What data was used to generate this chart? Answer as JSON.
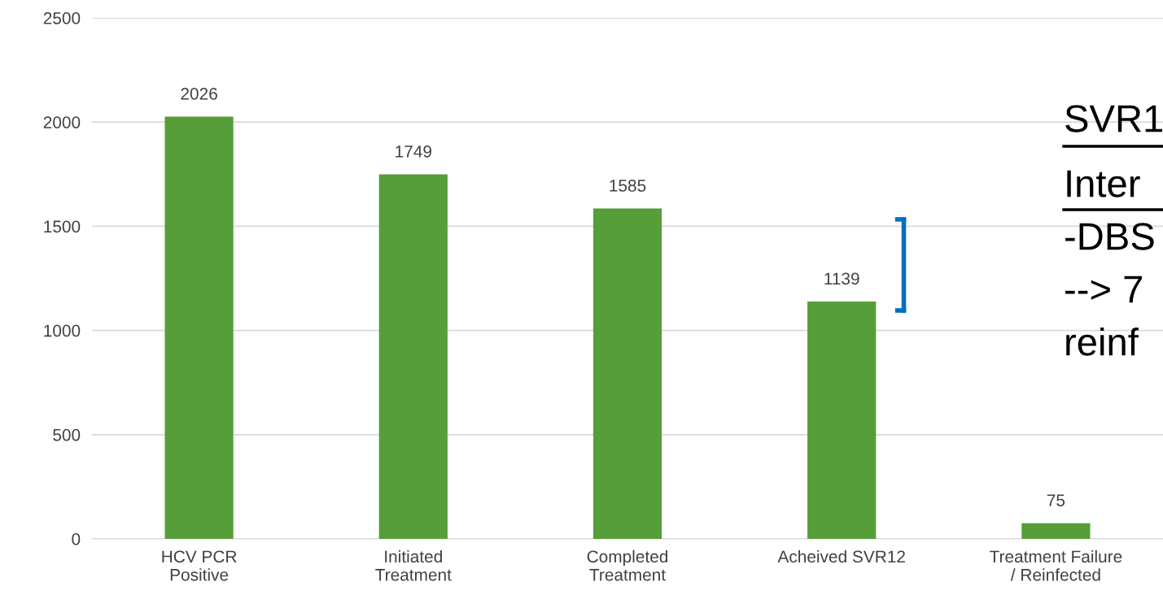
{
  "chart_data": {
    "type": "bar",
    "categories": [
      "HCV PCR\nPositive",
      "Initiated\nTreatment",
      "Completed\nTreatment",
      "Acheived SVR12",
      "Treatment Failure\n/ Reinfected"
    ],
    "values": [
      2026,
      1749,
      1585,
      1139,
      75
    ],
    "color": "#559e3a",
    "ylim": [
      0,
      2500
    ],
    "yticks": [
      0,
      500,
      1000,
      1500,
      2000,
      2500
    ],
    "grid": "y",
    "data_labels": true,
    "annotations": [
      "SVR1",
      "Inter",
      "-DBS",
      "--> 7",
      "reinf"
    ]
  }
}
